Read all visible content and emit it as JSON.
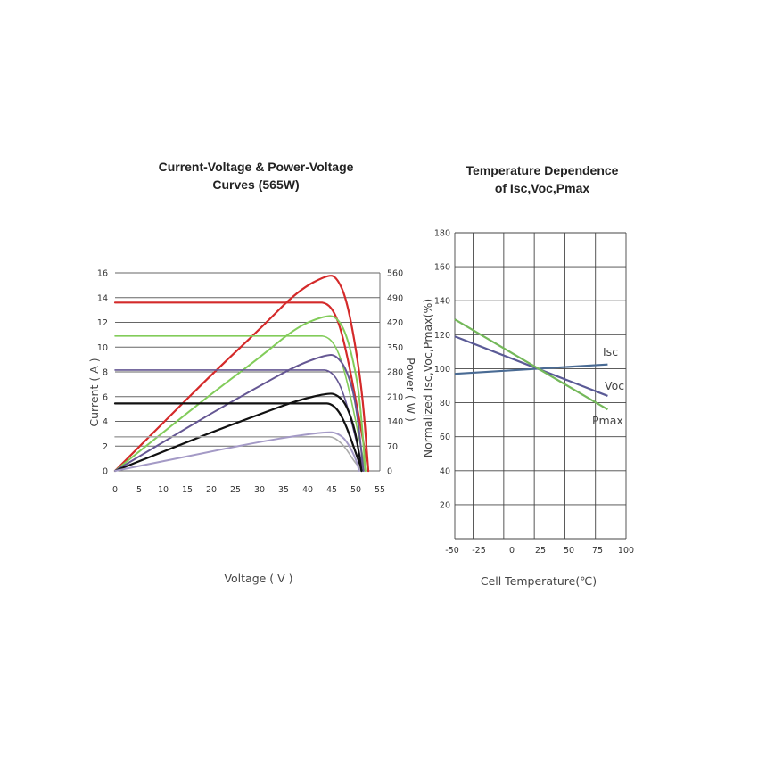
{
  "chart_data": [
    {
      "type": "line",
      "title": "Current-Voltage & Power-Voltage\nCurves (565W)",
      "xlabel": "Voltage ( V )",
      "ylabel": "Current ( A )",
      "y2label": "Power ( W )",
      "xlim": [
        0,
        55
      ],
      "ylim": [
        0,
        16
      ],
      "y2lim": [
        0,
        560
      ],
      "x_ticks": [
        "0",
        "5",
        "10",
        "15",
        "20",
        "25",
        "30",
        "35",
        "40",
        "45",
        "50",
        "55"
      ],
      "y_ticks": [
        "0",
        "2",
        "4",
        "6",
        "8",
        "10",
        "12",
        "14",
        "16"
      ],
      "y2_ticks": [
        "0",
        "70",
        "140",
        "210",
        "280",
        "350",
        "420",
        "490",
        "560"
      ],
      "grid": "horizontal",
      "series": [
        {
          "kind": "iv",
          "color": "#d42a2a",
          "isc": 13.6,
          "voc": 52.6,
          "vmp": 44.0,
          "imp": 12.6,
          "tail": 43.0,
          "width": 2.2
        },
        {
          "kind": "pv",
          "color": "#d42a2a",
          "points": [
            [
              0,
              0
            ],
            [
              10,
              136
            ],
            [
              20,
              272
            ],
            [
              30,
              400
            ],
            [
              38,
              510
            ],
            [
              44.2,
              555
            ],
            [
              46,
              548
            ],
            [
              48,
              490
            ],
            [
              50,
              350
            ],
            [
              51.5,
              200
            ],
            [
              52.6,
              0
            ]
          ],
          "width": 2.2
        },
        {
          "kind": "iv",
          "color": "#82cc5a",
          "isc": 10.9,
          "voc": 52.0,
          "vmp": 44.0,
          "imp": 10.0,
          "tail": 43.0,
          "width": 1.6
        },
        {
          "kind": "pv",
          "color": "#82cc5a",
          "points": [
            [
              0,
              0
            ],
            [
              10,
              109
            ],
            [
              20,
              218
            ],
            [
              30,
              320
            ],
            [
              38,
              410
            ],
            [
              44,
              440
            ],
            [
              46,
              435
            ],
            [
              48,
              390
            ],
            [
              50,
              280
            ],
            [
              51,
              180
            ],
            [
              52,
              0
            ]
          ],
          "width": 2.0
        },
        {
          "kind": "iv",
          "color": "#655793",
          "isc": 8.15,
          "voc": 51.6,
          "vmp": 44.0,
          "imp": 7.5,
          "tail": 43.5,
          "width": 1.6
        },
        {
          "kind": "pv",
          "color": "#655793",
          "points": [
            [
              0,
              0
            ],
            [
              10,
              81
            ],
            [
              20,
              163
            ],
            [
              30,
              240
            ],
            [
              38,
              300
            ],
            [
              44.3,
              330
            ],
            [
              46,
              325
            ],
            [
              48,
              290
            ],
            [
              50,
              200
            ],
            [
              51.6,
              0
            ]
          ],
          "width": 2.0
        },
        {
          "kind": "iv",
          "color": "#111111",
          "isc": 5.45,
          "voc": 51.2,
          "vmp": 44.0,
          "imp": 5.0,
          "tail": 44.0,
          "width": 2.2
        },
        {
          "kind": "pv",
          "color": "#111111",
          "points": [
            [
              0,
              0
            ],
            [
              10,
              54
            ],
            [
              20,
              109
            ],
            [
              30,
              160
            ],
            [
              38,
              200
            ],
            [
              44.3,
              220
            ],
            [
              46,
              216
            ],
            [
              48,
              190
            ],
            [
              50,
              110
            ],
            [
              51.2,
              0
            ]
          ],
          "width": 2.2
        },
        {
          "kind": "iv",
          "color": "#aaaaaa",
          "isc": 2.75,
          "voc": 50.8,
          "vmp": 44.0,
          "imp": 2.5,
          "tail": 44.5,
          "width": 1.6
        },
        {
          "kind": "pv",
          "color": "#a49ac6",
          "points": [
            [
              0,
              0
            ],
            [
              10,
              27
            ],
            [
              20,
              55
            ],
            [
              30,
              82
            ],
            [
              38,
              100
            ],
            [
              44,
              110
            ],
            [
              46,
              108
            ],
            [
              48,
              88
            ],
            [
              50,
              35
            ],
            [
              50.7,
              0
            ]
          ],
          "width": 2.0
        }
      ]
    },
    {
      "type": "line",
      "title": "Temperature Dependence\nof Isc,Voc,Pmax",
      "xlabel": "Cell Temperature(℃)",
      "ylabel": "Normalized Isc,Voc,Pmax(%)",
      "xlim": [
        -40,
        100
      ],
      "ylim": [
        0,
        180
      ],
      "x_ticks": [
        "-50",
        "-25",
        "0",
        "25",
        "50",
        "75",
        "100"
      ],
      "y_ticks": [
        "20",
        "40",
        "60",
        "80",
        "100",
        "120",
        "140",
        "160",
        "180"
      ],
      "grid": "both",
      "series": [
        {
          "name": "Isc",
          "color": "#4a6b94",
          "x": [
            -40,
            85
          ],
          "y": [
            97,
            102.5
          ]
        },
        {
          "name": "Voc",
          "color": "#5a5a96",
          "x": [
            -40,
            85
          ],
          "y": [
            119,
            84
          ]
        },
        {
          "name": "Pmax",
          "color": "#74b85a",
          "x": [
            -40,
            85
          ],
          "y": [
            129,
            76
          ]
        }
      ]
    }
  ]
}
